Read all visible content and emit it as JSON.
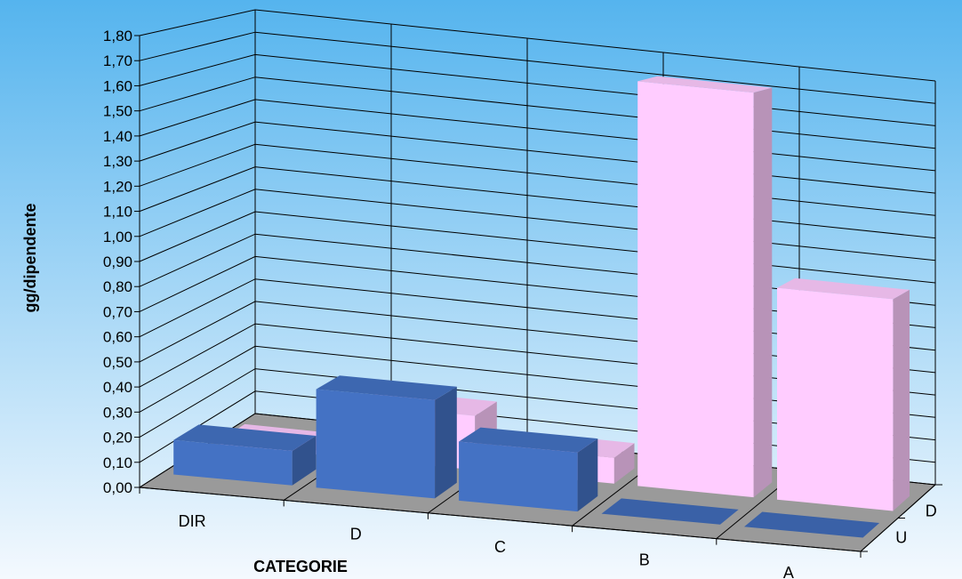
{
  "chart_data": {
    "type": "bar",
    "title": "",
    "xlabel": "CATEGORIE",
    "ylabel": "gg/dipendente",
    "categories": [
      "DIR",
      "D",
      "C",
      "B",
      "A"
    ],
    "depth_labels": [
      "U",
      "D"
    ],
    "series": [
      {
        "name": "U",
        "values": [
          0.14,
          0.4,
          0.24,
          0.0,
          0.0
        ],
        "color": "#4472C4"
      },
      {
        "name": "D",
        "values": [
          0.02,
          0.23,
          0.11,
          1.72,
          0.9
        ],
        "color": "#FFCCFF"
      }
    ],
    "ylim": [
      0,
      1.8
    ],
    "yticks": [
      "0,00",
      "0,10",
      "0,20",
      "0,30",
      "0,40",
      "0,50",
      "0,60",
      "0,70",
      "0,80",
      "0,90",
      "1,00",
      "1,10",
      "1,20",
      "1,30",
      "1,40",
      "1,50",
      "1,60",
      "1,70",
      "1,80"
    ],
    "grid": true,
    "background": [
      "#55b4ee",
      "#f4f9fe"
    ],
    "floor_color": "#9a9a9a"
  }
}
